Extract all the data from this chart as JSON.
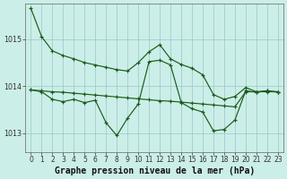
{
  "title": "Graphe pression niveau de la mer (hPa)",
  "yticks": [
    1013,
    1014,
    1015
  ],
  "ylim": [
    1012.6,
    1015.75
  ],
  "xlim": [
    -0.5,
    23.5
  ],
  "background_color": "#cceee8",
  "grid_color": "#99cccc",
  "line_color": "#1a5c1a",
  "x": [
    0,
    1,
    2,
    3,
    4,
    5,
    6,
    7,
    8,
    9,
    10,
    11,
    12,
    13,
    14,
    15,
    16,
    17,
    18,
    19,
    20,
    21,
    22,
    23
  ],
  "series1": [
    1015.65,
    1015.05,
    1014.75,
    1014.65,
    1014.58,
    1014.5,
    1014.45,
    1014.4,
    1014.35,
    1014.32,
    1014.5,
    1014.73,
    1014.88,
    1014.58,
    1014.46,
    1014.38,
    1014.24,
    1013.82,
    1013.72,
    1013.78,
    1013.97,
    1013.88,
    1013.9,
    1013.88
  ],
  "series2": [
    1013.92,
    1013.88,
    1013.72,
    1013.67,
    1013.72,
    1013.65,
    1013.7,
    1013.22,
    1012.95,
    1013.32,
    1013.62,
    1014.52,
    1014.55,
    1014.45,
    1013.65,
    1013.52,
    1013.45,
    1013.05,
    1013.08,
    1013.28,
    1013.9,
    1013.87,
    1013.9,
    1013.87
  ],
  "series3": [
    1013.92,
    1013.9,
    1013.88,
    1013.87,
    1013.85,
    1013.83,
    1013.81,
    1013.79,
    1013.77,
    1013.75,
    1013.73,
    1013.71,
    1013.69,
    1013.68,
    1013.66,
    1013.64,
    1013.62,
    1013.6,
    1013.58,
    1013.56,
    1013.88,
    1013.88,
    1013.88,
    1013.88
  ],
  "marker_size": 2.5,
  "line_width": 0.85,
  "title_font_size": 7.0,
  "tick_font_size": 5.8
}
